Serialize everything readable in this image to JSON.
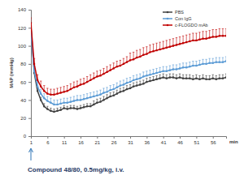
{
  "chart_data": {
    "type": "line",
    "y_label": "MAP (mmHg)",
    "x_label": "min",
    "annotation": "Compound 48/80, 0.5mg/kg, i.v.",
    "legend": "upper right",
    "grid": false,
    "x": [
      1,
      2,
      3,
      4,
      5,
      6,
      7,
      8,
      9,
      10,
      11,
      12,
      13,
      14,
      15,
      16,
      17,
      18,
      19,
      20,
      21,
      22,
      23,
      24,
      25,
      26,
      27,
      28,
      29,
      30,
      31,
      32,
      33,
      34,
      35,
      36,
      37,
      38,
      39,
      40,
      41,
      42,
      43,
      44,
      45,
      46,
      47,
      48,
      49,
      50,
      51,
      52,
      53,
      54,
      55,
      56,
      57,
      58,
      59,
      60
    ],
    "xlim": [
      1,
      60
    ],
    "xticks": [
      1,
      6,
      11,
      16,
      21,
      26,
      31,
      36,
      41,
      46,
      51,
      56
    ],
    "ylim": [
      0,
      140
    ],
    "yticks": [
      0,
      20,
      40,
      60,
      80,
      100,
      120,
      140
    ],
    "series": [
      {
        "name": "PBS",
        "color": "#404040",
        "marker": "square",
        "line_style": "solid",
        "values": [
          122,
          70,
          50,
          40,
          33,
          30,
          28,
          27,
          28,
          29,
          31,
          30,
          31,
          31,
          30,
          31,
          32,
          33,
          33,
          35,
          37,
          38,
          40,
          42,
          44,
          45,
          47,
          49,
          50,
          52,
          53,
          55,
          56,
          57,
          58,
          60,
          61,
          62,
          63,
          64,
          65,
          64,
          65,
          65,
          64,
          65,
          64,
          64,
          64,
          63,
          64,
          63,
          64,
          63,
          63,
          64,
          63,
          64,
          64,
          65
        ],
        "errors": [
          4,
          5,
          4,
          3,
          3,
          3,
          3,
          3,
          3,
          3,
          3,
          3,
          3,
          3,
          3,
          3,
          3,
          3,
          3,
          4,
          4,
          4,
          4,
          4,
          4,
          4,
          4,
          4,
          4,
          4,
          4,
          4,
          4,
          4,
          4,
          4,
          4,
          4,
          4,
          4,
          4,
          4,
          4,
          4,
          4,
          4,
          4,
          4,
          4,
          4,
          4,
          4,
          4,
          4,
          4,
          4,
          4,
          4,
          4,
          4
        ]
      },
      {
        "name": "Con IgG",
        "color": "#5b9bd5",
        "marker": "square",
        "line_style": "solid",
        "values": [
          115,
          72,
          55,
          47,
          42,
          39,
          37,
          35,
          35,
          36,
          37,
          37,
          38,
          39,
          40,
          40,
          41,
          42,
          43,
          44,
          45,
          46,
          48,
          49,
          51,
          52,
          54,
          56,
          57,
          59,
          60,
          62,
          63,
          64,
          66,
          67,
          68,
          69,
          70,
          71,
          72,
          72,
          73,
          74,
          74,
          75,
          76,
          76,
          77,
          78,
          78,
          79,
          80,
          80,
          81,
          81,
          82,
          82,
          82,
          83
        ],
        "errors": [
          5,
          5,
          5,
          5,
          5,
          5,
          5,
          5,
          5,
          5,
          5,
          5,
          5,
          5,
          5,
          5,
          5,
          5,
          5,
          5,
          5,
          5,
          5,
          5,
          5,
          5,
          5,
          5,
          5,
          5,
          5,
          5,
          5,
          5,
          5,
          5,
          5,
          5,
          5,
          5,
          5,
          5,
          5,
          5,
          5,
          5,
          5,
          5,
          5,
          5,
          5,
          5,
          5,
          5,
          5,
          5,
          5,
          5,
          5,
          5
        ]
      },
      {
        "name": "c-FLOGDO mAb",
        "color": "#c00000",
        "marker": "square",
        "line_style": "solid",
        "values": [
          125,
          80,
          62,
          55,
          50,
          47,
          46,
          46,
          47,
          48,
          49,
          50,
          52,
          54,
          55,
          57,
          58,
          60,
          62,
          64,
          66,
          67,
          69,
          71,
          73,
          75,
          77,
          78,
          80,
          82,
          84,
          85,
          87,
          88,
          90,
          91,
          93,
          94,
          95,
          96,
          97,
          98,
          99,
          100,
          101,
          102,
          103,
          104,
          105,
          106,
          106,
          107,
          108,
          108,
          109,
          110,
          110,
          111,
          111,
          111
        ],
        "errors": [
          6,
          6,
          6,
          6,
          6,
          6,
          6,
          6,
          6,
          6,
          6,
          6,
          6,
          6,
          6,
          6,
          6,
          6,
          6,
          6,
          6,
          6,
          6,
          6,
          6,
          6,
          6,
          6,
          6,
          6,
          8,
          8,
          8,
          8,
          8,
          8,
          8,
          8,
          8,
          8,
          8,
          8,
          8,
          8,
          8,
          8,
          8,
          8,
          8,
          8,
          8,
          8,
          8,
          8,
          8,
          8,
          8,
          8,
          8,
          8
        ]
      }
    ]
  }
}
